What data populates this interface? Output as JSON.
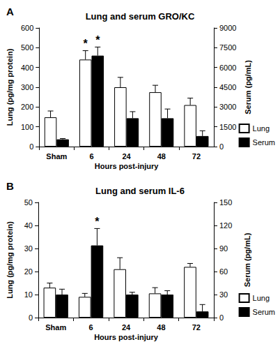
{
  "chart_data": [
    {
      "panel": "A",
      "type": "bar",
      "title": "Lung and serum GRO/KC",
      "categories": [
        "Sham",
        "6",
        "24",
        "48",
        "72"
      ],
      "x_label": "Hours post-injury",
      "y_label": "Lung (pg/mg protein)",
      "y2_label": "Serum (pg/mL)",
      "ylim": [
        0,
        600
      ],
      "yticks": [
        0,
        100,
        200,
        300,
        400,
        500,
        600
      ],
      "y2lim": [
        0,
        9000
      ],
      "y2ticks": [
        0,
        1500,
        3000,
        4500,
        6000,
        7500,
        9000
      ],
      "grid": false,
      "legend": "right",
      "series": [
        {
          "name": "Lung",
          "color": "#ffffff",
          "values": [
            148,
            440,
            300,
            275,
            210
          ],
          "errors": [
            32,
            45,
            50,
            35,
            35
          ]
        },
        {
          "name": "Serum",
          "color": "#000000",
          "axis": "y2",
          "values": [
            550,
            6900,
            2150,
            2150,
            800
          ],
          "errors": [
            60,
            650,
            500,
            700,
            400
          ]
        }
      ],
      "annotations": [
        {
          "text": "*",
          "category": "6",
          "series": "Lung"
        },
        {
          "text": "*",
          "category": "6",
          "series": "Serum"
        }
      ]
    },
    {
      "panel": "B",
      "type": "bar",
      "title": "Lung and serum IL-6",
      "categories": [
        "Sham",
        "6",
        "24",
        "48",
        "72"
      ],
      "x_label": "Hours post-injury",
      "y_label": "Lung (pg/mg protein)",
      "y2_label": "Serum (pg/mL)",
      "ylim": [
        0,
        50
      ],
      "yticks": [
        0,
        10,
        20,
        30,
        40,
        50
      ],
      "y2lim": [
        0,
        150
      ],
      "y2ticks": [
        0,
        30,
        60,
        90,
        120,
        150
      ],
      "grid": false,
      "legend": "right",
      "series": [
        {
          "name": "Lung",
          "color": "#ffffff",
          "values": [
            13,
            9,
            21,
            10.5,
            22
          ],
          "errors": [
            2,
            1.5,
            5,
            2.5,
            1.5
          ]
        },
        {
          "name": "Serum",
          "color": "#000000",
          "axis": "y2",
          "values": [
            30,
            94,
            30,
            30,
            8
          ],
          "errors": [
            7,
            22,
            3,
            5,
            9
          ]
        }
      ],
      "annotations": [
        {
          "text": "*",
          "category": "6",
          "series": "Serum"
        }
      ]
    }
  ]
}
